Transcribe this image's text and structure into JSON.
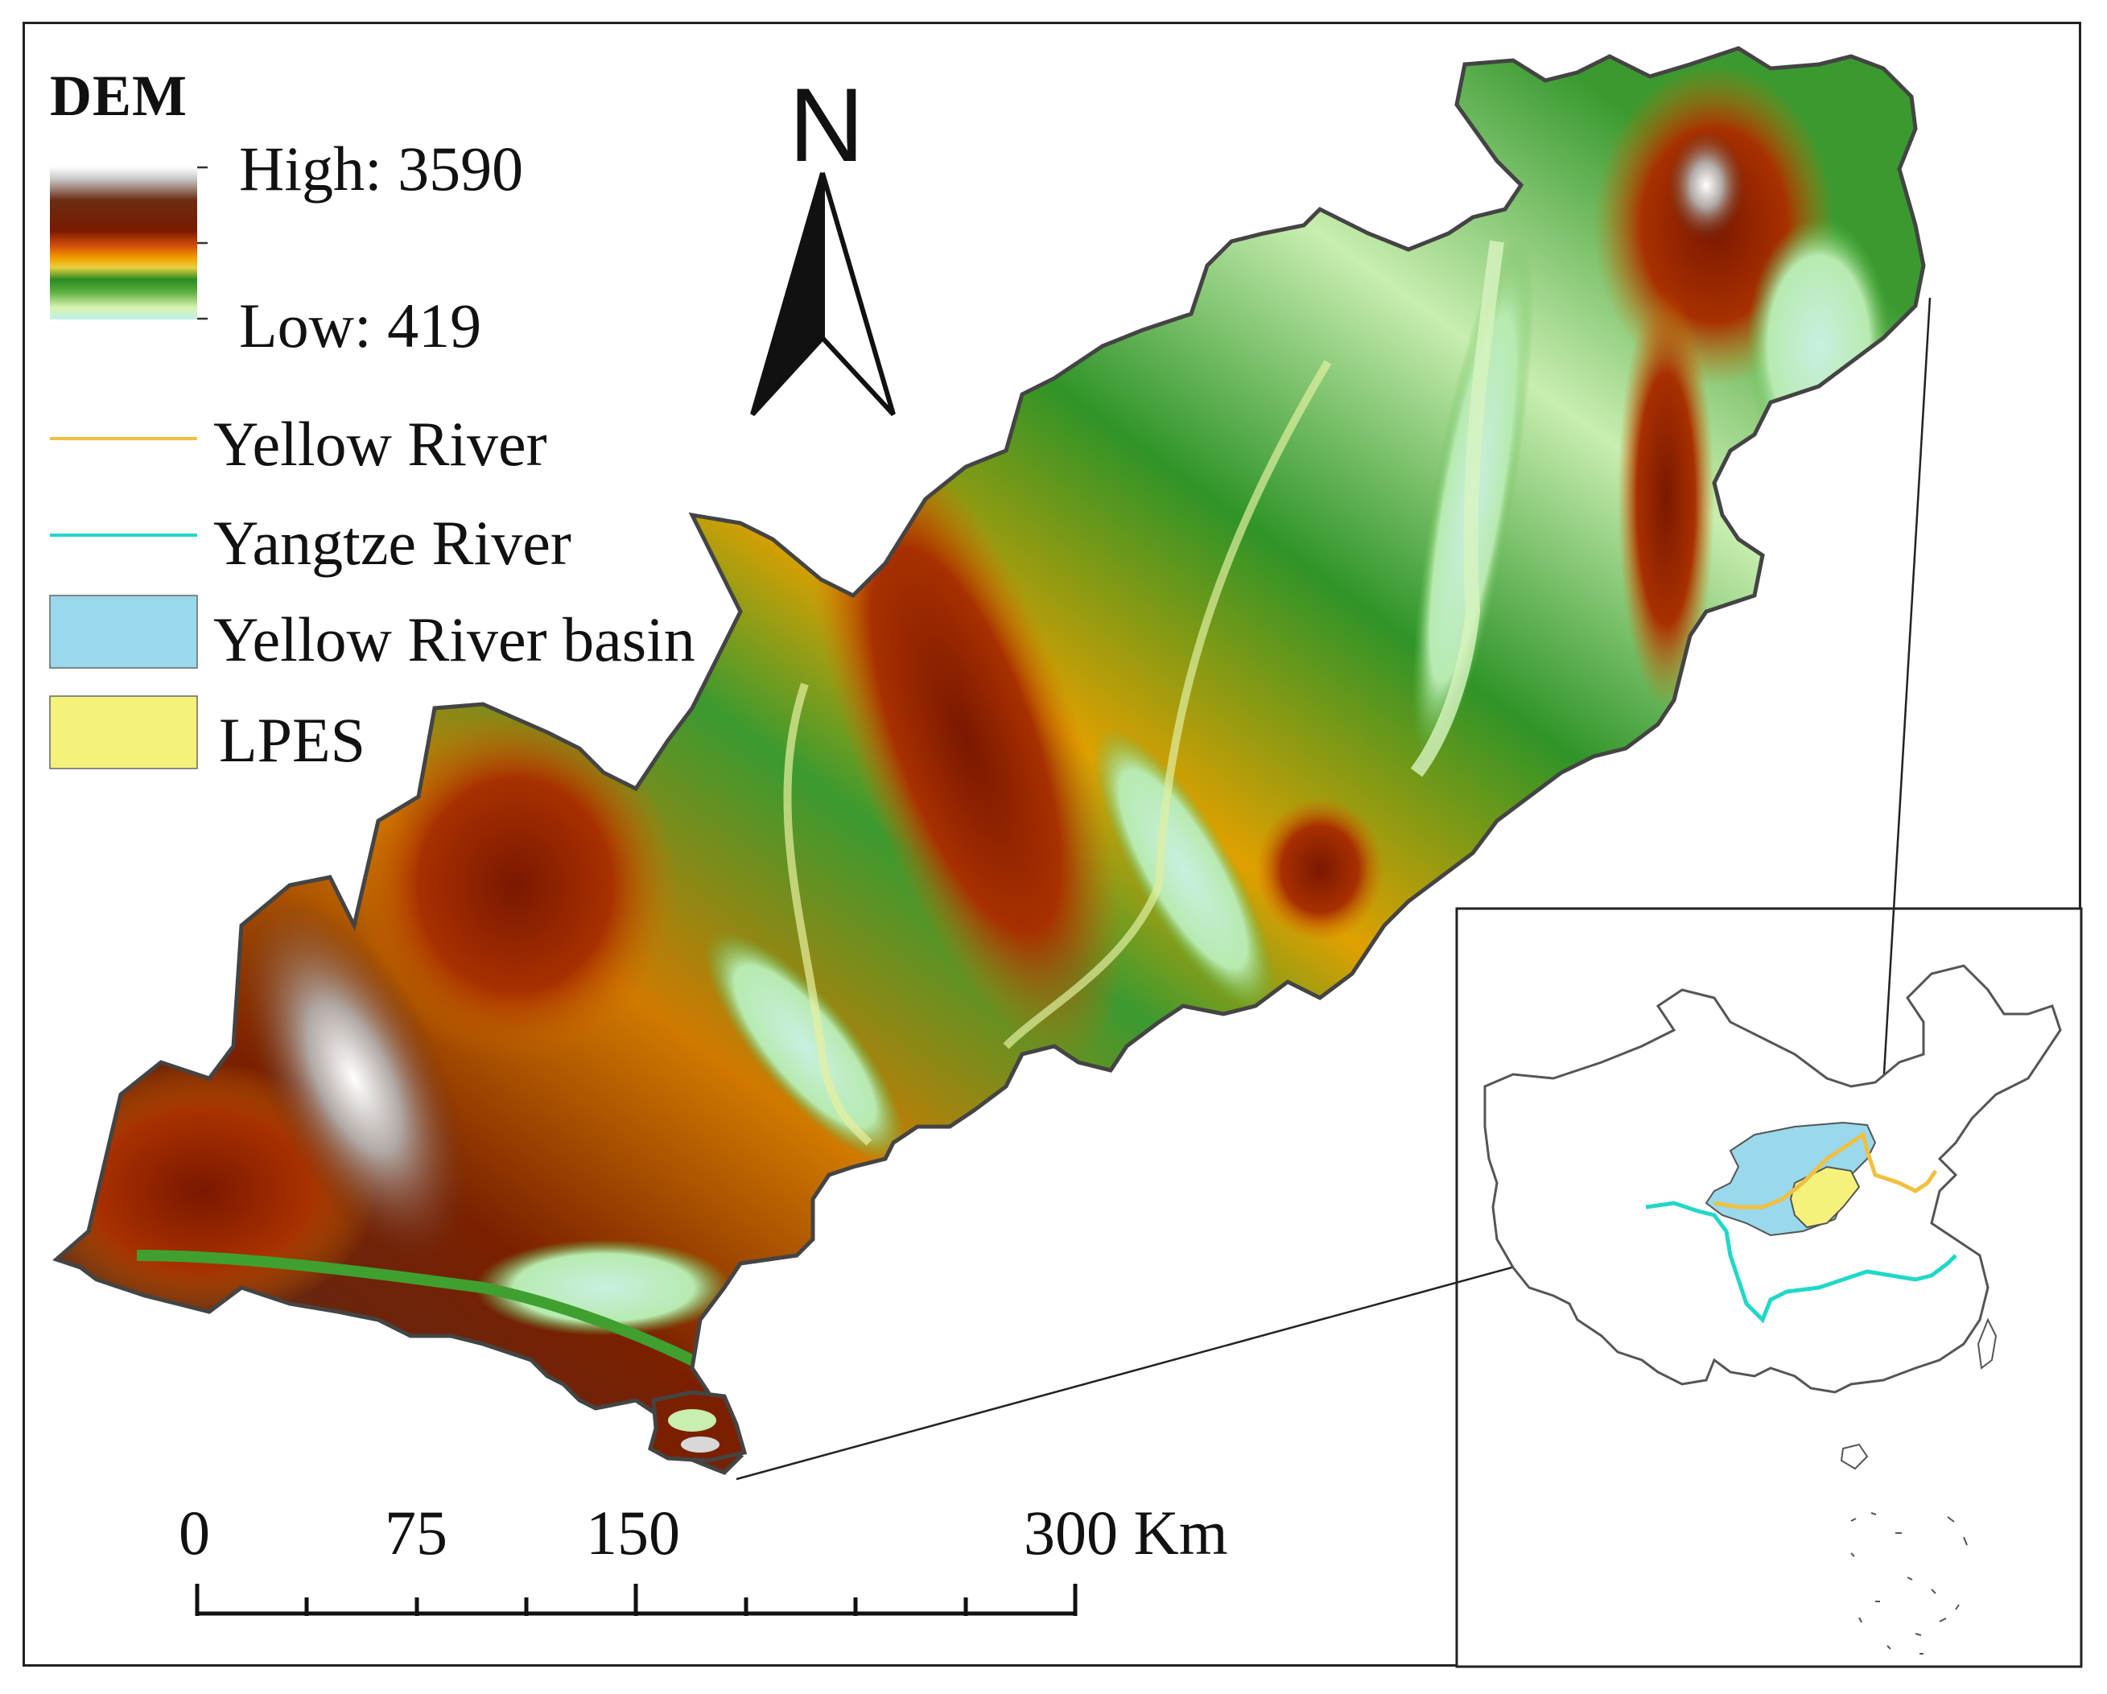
{
  "legend": {
    "title": "DEM",
    "high_label": "High: 3590",
    "low_label": "Low: 419",
    "gradient_colors": [
      "#ffffff",
      "#a0a0a0",
      "#6b2c12",
      "#7a1a00",
      "#c0400a",
      "#f2a000",
      "#e8c020",
      "#2a8a20",
      "#3fa030",
      "#c8eeb0",
      "#c0f0e8"
    ],
    "items": [
      {
        "label": "Yellow River",
        "kind": "line",
        "color": "#f0c040"
      },
      {
        "label": "Yangtze River",
        "kind": "line",
        "color": "#20d8c8"
      },
      {
        "label": "Yellow River basin",
        "kind": "patch",
        "color": "#9ad8ec"
      },
      {
        "label": "LPES",
        "kind": "patch",
        "color": "#f4f27a"
      }
    ]
  },
  "north_arrow": {
    "label": "N"
  },
  "scale_bar": {
    "labels": [
      "0",
      "75",
      "150",
      "300 Km"
    ],
    "values": [
      0,
      75,
      150,
      300
    ]
  },
  "colors": {
    "border": "#444444",
    "inset_outline": "#555555",
    "yellow_river": "#f0c040",
    "yangtze_river": "#20d8c8",
    "basin": "#9ad8ec",
    "lpes": "#f4f27a"
  }
}
